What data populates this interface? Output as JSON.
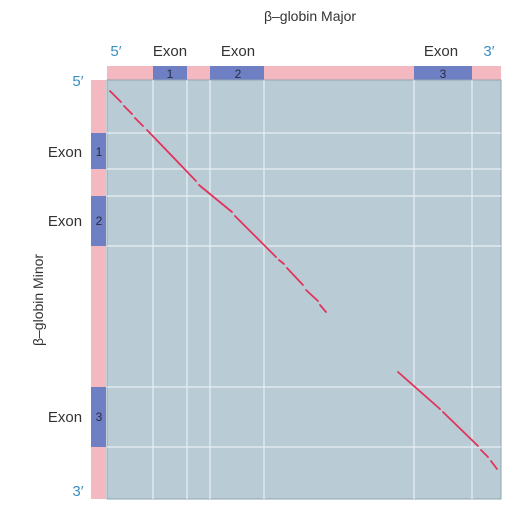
{
  "top_title": "β–globin Major",
  "left_title": "β–globin Minor",
  "prime5_top": "5′",
  "prime3_top": "3′",
  "prime5_left": "5′",
  "prime3_left": "3′",
  "exons_top": [
    {
      "label": "Exon",
      "number": "1"
    },
    {
      "label": "Exon",
      "number": "2"
    },
    {
      "label": "Exon",
      "number": "3"
    }
  ],
  "exons_left": [
    {
      "label": "Exon",
      "number": "1"
    },
    {
      "label": "Exon",
      "number": "2"
    },
    {
      "label": "Exon",
      "number": "3"
    }
  ],
  "colors": {
    "plot_bg": "#b9ccd6",
    "intron_strip": "#f4b8c0",
    "exon_strip": "#6e7fc4",
    "grid": "#e8eef2",
    "dots": "#e0345c",
    "prime": "#3a8fc0"
  }
}
